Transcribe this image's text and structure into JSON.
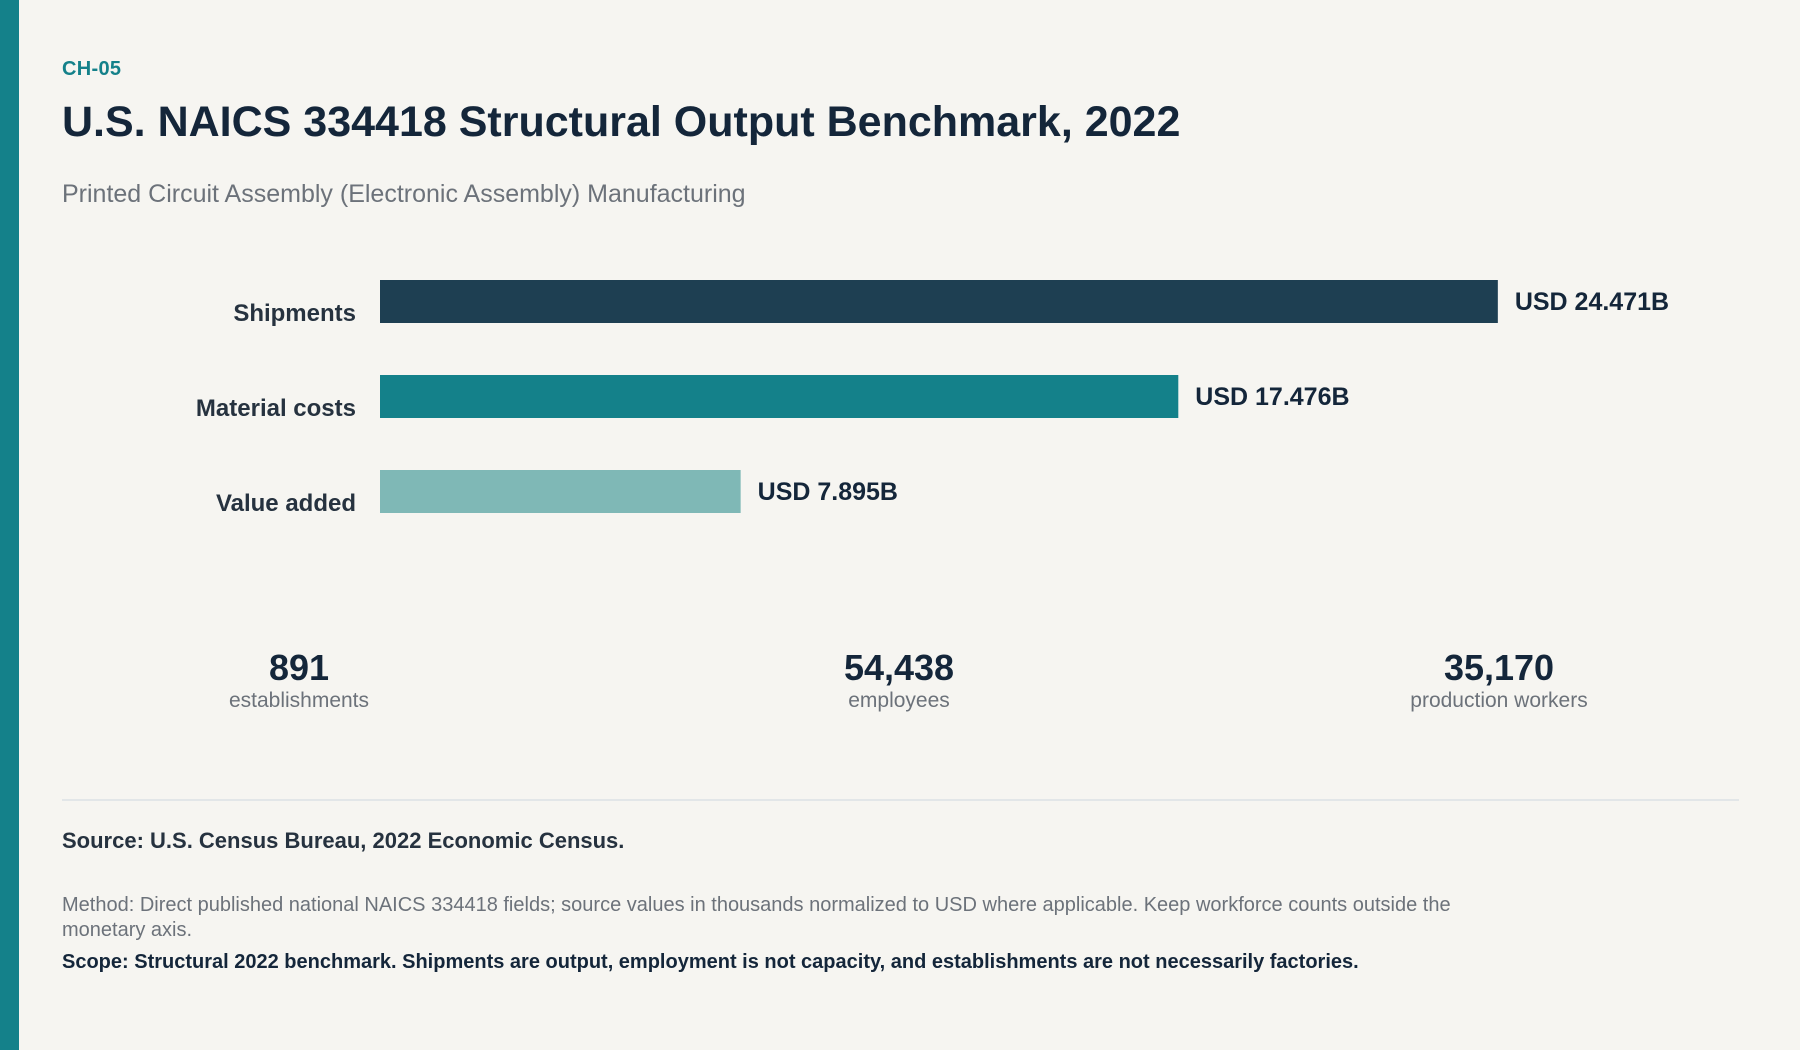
{
  "header": {
    "chart_id": "CH-05",
    "title": "U.S. NAICS 334418 Structural Output Benchmark, 2022",
    "subtitle": "Printed Circuit Assembly (Electronic Assembly) Manufacturing"
  },
  "chart_data": {
    "type": "bar",
    "orientation": "horizontal",
    "title": "U.S. NAICS 334418 Structural Output Benchmark, 2022",
    "subtitle": "Printed Circuit Assembly (Electronic Assembly) Manufacturing",
    "categories": [
      "Shipments",
      "Material costs",
      "Value added"
    ],
    "values": [
      24.471,
      17.476,
      7.895
    ],
    "value_labels": [
      "USD 24.471B",
      "USD 17.476B",
      "USD 7.895B"
    ],
    "unit": "USD billions",
    "colors": [
      "#1e3f52",
      "#14818a",
      "#7fb8b6"
    ],
    "grid": false,
    "legend": "none"
  },
  "stats": [
    {
      "value": "891",
      "label": "establishments"
    },
    {
      "value": "54,438",
      "label": "employees"
    },
    {
      "value": "35,170",
      "label": "production workers"
    }
  ],
  "footer": {
    "source": "Source: U.S. Census Bureau, 2022 Economic Census.",
    "method": "Method: Direct published national NAICS 334418 fields; source values in thousands normalized to USD where applicable. Keep workforce counts outside the monetary axis.",
    "scope": "Scope: Structural 2022 benchmark. Shipments are output, employment is not capacity, and establishments are not necessarily factories."
  },
  "colors": {
    "accent": "#14818a",
    "background": "#f6f5f1",
    "text_dark": "#14263a",
    "text_muted": "#6c727a"
  }
}
